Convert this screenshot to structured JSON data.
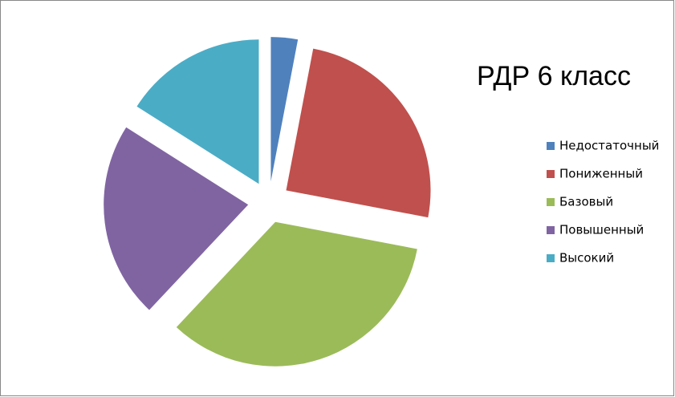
{
  "chart_data": {
    "type": "pie",
    "title": "РДР 6 класс",
    "categories": [
      "Недостаточный",
      "Пониженный",
      "Базовый",
      "Повышенный",
      "Высокий"
    ],
    "values": [
      3,
      25,
      34,
      22,
      16
    ],
    "colors": [
      "#4f81bd",
      "#c0504d",
      "#9bbb59",
      "#8064a2",
      "#4bacc6"
    ],
    "exploded": true,
    "legend": "right"
  }
}
